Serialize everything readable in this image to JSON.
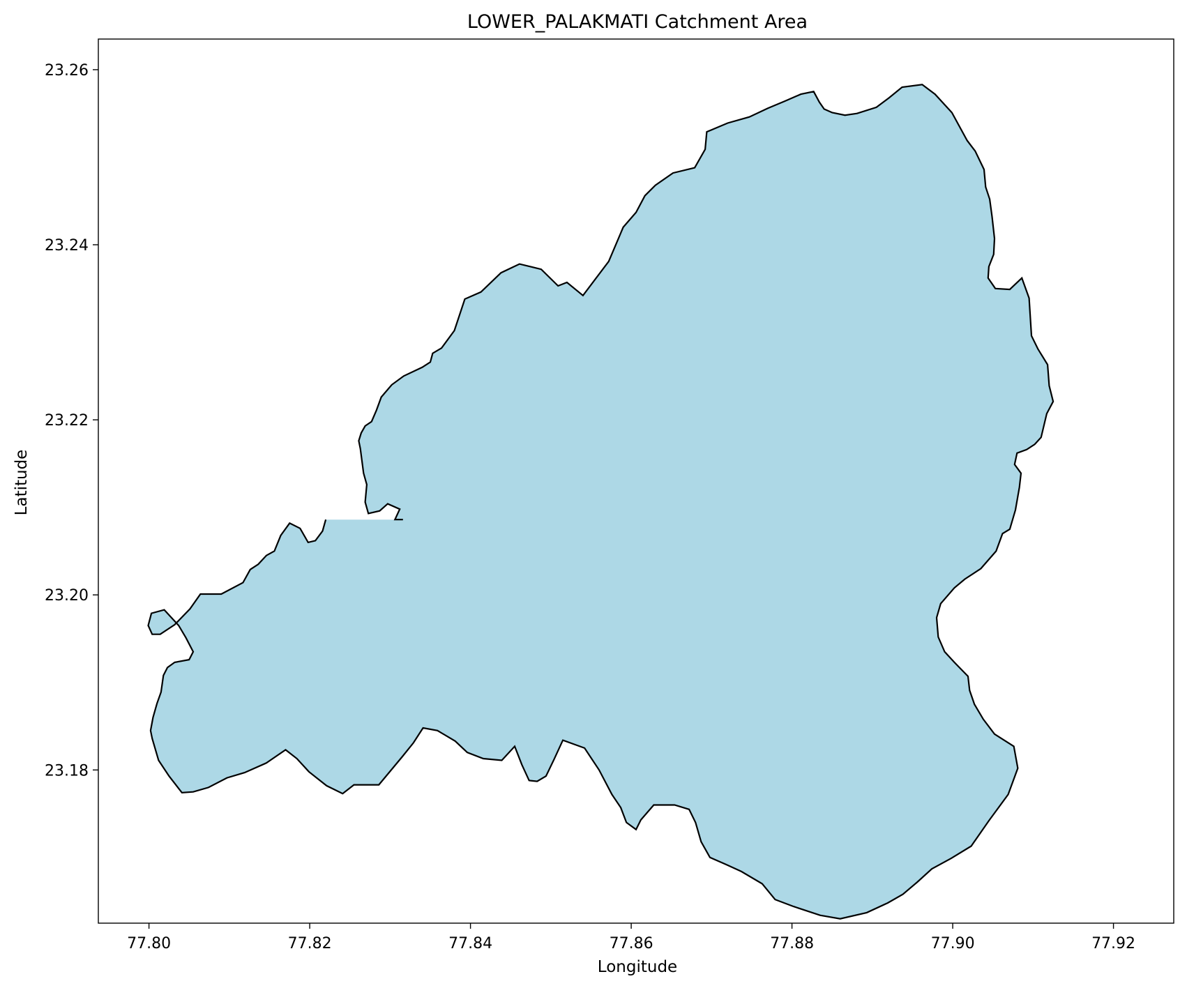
{
  "title": "LOWER_PALAKMATI Catchment Area",
  "xlabel": "Longitude",
  "ylabel": "Latitude",
  "colors": {
    "fill": "#add8e6",
    "edge": "#000000",
    "background": "#ffffff"
  },
  "chart_data": {
    "type": "area",
    "title": "LOWER_PALAKMATI Catchment Area",
    "xlabel": "Longitude",
    "ylabel": "Latitude",
    "xlim": [
      77.7937,
      77.9275
    ],
    "ylim": [
      23.1625,
      23.2635
    ],
    "grid": false,
    "x_ticks": [
      {
        "value": 77.8,
        "label": "77.80"
      },
      {
        "value": 77.82,
        "label": "77.82"
      },
      {
        "value": 77.84,
        "label": "77.84"
      },
      {
        "value": 77.86,
        "label": "77.86"
      },
      {
        "value": 77.88,
        "label": "77.88"
      },
      {
        "value": 77.9,
        "label": "77.90"
      },
      {
        "value": 77.92,
        "label": "77.92"
      }
    ],
    "y_ticks": [
      {
        "value": 23.18,
        "label": "23.18"
      },
      {
        "value": 23.2,
        "label": "23.20"
      },
      {
        "value": 23.22,
        "label": "23.22"
      },
      {
        "value": 23.24,
        "label": "23.24"
      },
      {
        "value": 23.26,
        "label": "23.26"
      }
    ],
    "boundary": {
      "name": "LOWER_PALAKMATI",
      "lon": [
        77.8316,
        77.8306,
        77.8312,
        77.8297,
        77.8287,
        77.8273,
        77.8269,
        77.8271,
        77.8267,
        77.8263,
        77.8261,
        77.8264,
        77.8269,
        77.8277,
        77.8283,
        77.8289,
        77.8302,
        77.8317,
        77.834,
        77.835,
        77.8353,
        77.8364,
        77.838,
        77.8393,
        77.8413,
        77.8438,
        77.8461,
        77.8488,
        77.8509,
        77.852,
        77.854,
        77.8572,
        77.859,
        77.8606,
        77.8617,
        77.863,
        77.8652,
        77.8679,
        77.8692,
        77.8694,
        77.872,
        77.8747,
        77.877,
        77.8791,
        77.8811,
        77.8827,
        77.8834,
        77.884,
        77.885,
        77.8866,
        77.8881,
        77.8905,
        77.8921,
        77.8937,
        77.8962,
        77.8978,
        77.8999,
        77.9018,
        77.9028,
        77.9039,
        77.9041,
        77.9046,
        77.9049,
        77.9052,
        77.9051,
        77.9045,
        77.9044,
        77.9053,
        77.9071,
        77.9086,
        77.9095,
        77.9098,
        77.9106,
        77.9118,
        77.912,
        77.9125,
        77.9117,
        77.911,
        77.9102,
        77.9092,
        77.908,
        77.9077,
        77.9085,
        77.9083,
        77.9078,
        77.9071,
        77.9062,
        77.9054,
        77.9035,
        77.9015,
        77.9002,
        77.8985,
        77.898,
        77.8982,
        77.899,
        77.9002,
        77.9019,
        77.9021,
        77.9027,
        77.9038,
        77.9052,
        77.9076,
        77.9081,
        77.9069,
        77.9045,
        77.9023,
        77.8998,
        77.8974,
        77.8956,
        77.8938,
        77.8919,
        77.8893,
        77.886,
        77.8835,
        77.8802,
        77.8779,
        77.8763,
        77.8737,
        77.8718,
        77.8698,
        77.8687,
        77.868,
        77.8672,
        77.8654,
        77.8628,
        77.8612,
        77.8606,
        77.8594,
        77.8587,
        77.8576,
        77.856,
        77.8542,
        77.8515,
        77.8504,
        77.8494,
        77.8483,
        77.8473,
        77.8464,
        77.8455,
        77.8439,
        77.8416,
        77.8396,
        77.8381,
        77.8359,
        77.8341,
        77.8329,
        77.8315,
        77.8286,
        77.8272,
        77.8255,
        77.8241,
        77.8221,
        77.8199,
        77.8184,
        77.817,
        77.8146,
        77.8119,
        77.8097,
        77.8074,
        77.8055,
        77.8041,
        77.8025,
        77.8012,
        77.8004,
        77.8002,
        77.8005,
        77.801,
        77.8015,
        77.8018,
        77.8023,
        77.8032,
        77.805,
        77.8055,
        77.8046,
        77.8037,
        77.8019,
        77.8003,
        77.7999,
        77.8004,
        77.8014,
        77.8032,
        77.8051,
        77.8064,
        77.809,
        77.8117,
        77.8126,
        77.8136,
        77.8146,
        77.8156,
        77.8164,
        77.8175,
        77.8188,
        77.8198,
        77.8207,
        77.8216,
        77.822,
        77.8227,
        77.8244,
        77.8257,
        77.8275,
        77.8286,
        77.8297,
        77.8303,
        77.8306,
        77.8311,
        77.8316
      ],
      "lat": [
        23.2086,
        23.2086,
        23.2098,
        23.2104,
        23.2096,
        23.2093,
        23.2106,
        23.2126,
        23.2139,
        23.2167,
        23.2176,
        23.2185,
        23.2193,
        23.2198,
        23.2211,
        23.2226,
        23.224,
        23.225,
        23.226,
        23.2266,
        23.2276,
        23.2282,
        23.2302,
        23.2338,
        23.2346,
        23.2368,
        23.2378,
        23.2372,
        23.2353,
        23.2357,
        23.2342,
        23.2381,
        23.242,
        23.2437,
        23.2456,
        23.2468,
        23.2482,
        23.2488,
        23.2509,
        23.2529,
        23.2539,
        23.2546,
        23.2556,
        23.2564,
        23.2572,
        23.2575,
        23.2563,
        23.2555,
        23.2551,
        23.2548,
        23.255,
        23.2557,
        23.2568,
        23.258,
        23.2583,
        23.2572,
        23.2551,
        23.2519,
        23.2507,
        23.2486,
        23.2466,
        23.2452,
        23.2432,
        23.2407,
        23.2389,
        23.2375,
        23.2362,
        23.235,
        23.2349,
        23.2362,
        23.2339,
        23.2296,
        23.2281,
        23.2263,
        23.2239,
        23.2221,
        23.2207,
        23.218,
        23.2172,
        23.2166,
        23.2162,
        23.2149,
        23.2139,
        23.2123,
        23.2097,
        23.2075,
        23.207,
        23.205,
        23.203,
        23.2018,
        23.2008,
        23.199,
        23.1974,
        23.1952,
        23.1935,
        23.1923,
        23.1907,
        23.1891,
        23.1875,
        23.1858,
        23.1841,
        23.1827,
        23.1802,
        23.1772,
        23.1742,
        23.1713,
        23.1699,
        23.1687,
        23.1672,
        23.1658,
        23.1648,
        23.1637,
        23.163,
        23.1634,
        23.1644,
        23.1652,
        23.167,
        23.1684,
        23.1692,
        23.17,
        23.1718,
        23.174,
        23.1755,
        23.176,
        23.176,
        23.1743,
        23.1732,
        23.174,
        23.1757,
        23.1772,
        23.18,
        23.1825,
        23.1834,
        23.1812,
        23.1793,
        23.1787,
        23.1788,
        23.1806,
        23.1827,
        23.1811,
        23.1813,
        23.182,
        23.1833,
        23.1845,
        23.1848,
        23.1831,
        23.1815,
        23.1783,
        23.1783,
        23.1783,
        23.1773,
        23.1782,
        23.1798,
        23.1813,
        23.1823,
        23.1808,
        23.1797,
        23.1791,
        23.178,
        23.1775,
        23.1774,
        23.1793,
        23.1811,
        23.1836,
        23.1845,
        23.186,
        23.1876,
        23.1889,
        23.1908,
        23.1917,
        23.1923,
        23.1926,
        23.1935,
        23.1951,
        23.1965,
        23.1983,
        23.1979,
        23.1965,
        23.1955,
        23.1955,
        23.1966,
        23.1984,
        23.2001,
        23.2001,
        23.2014,
        23.2029,
        23.2035,
        23.2045,
        23.205,
        23.2068,
        23.2082,
        23.2076,
        23.206,
        23.2062,
        23.2073,
        23.2086
      ]
    }
  }
}
